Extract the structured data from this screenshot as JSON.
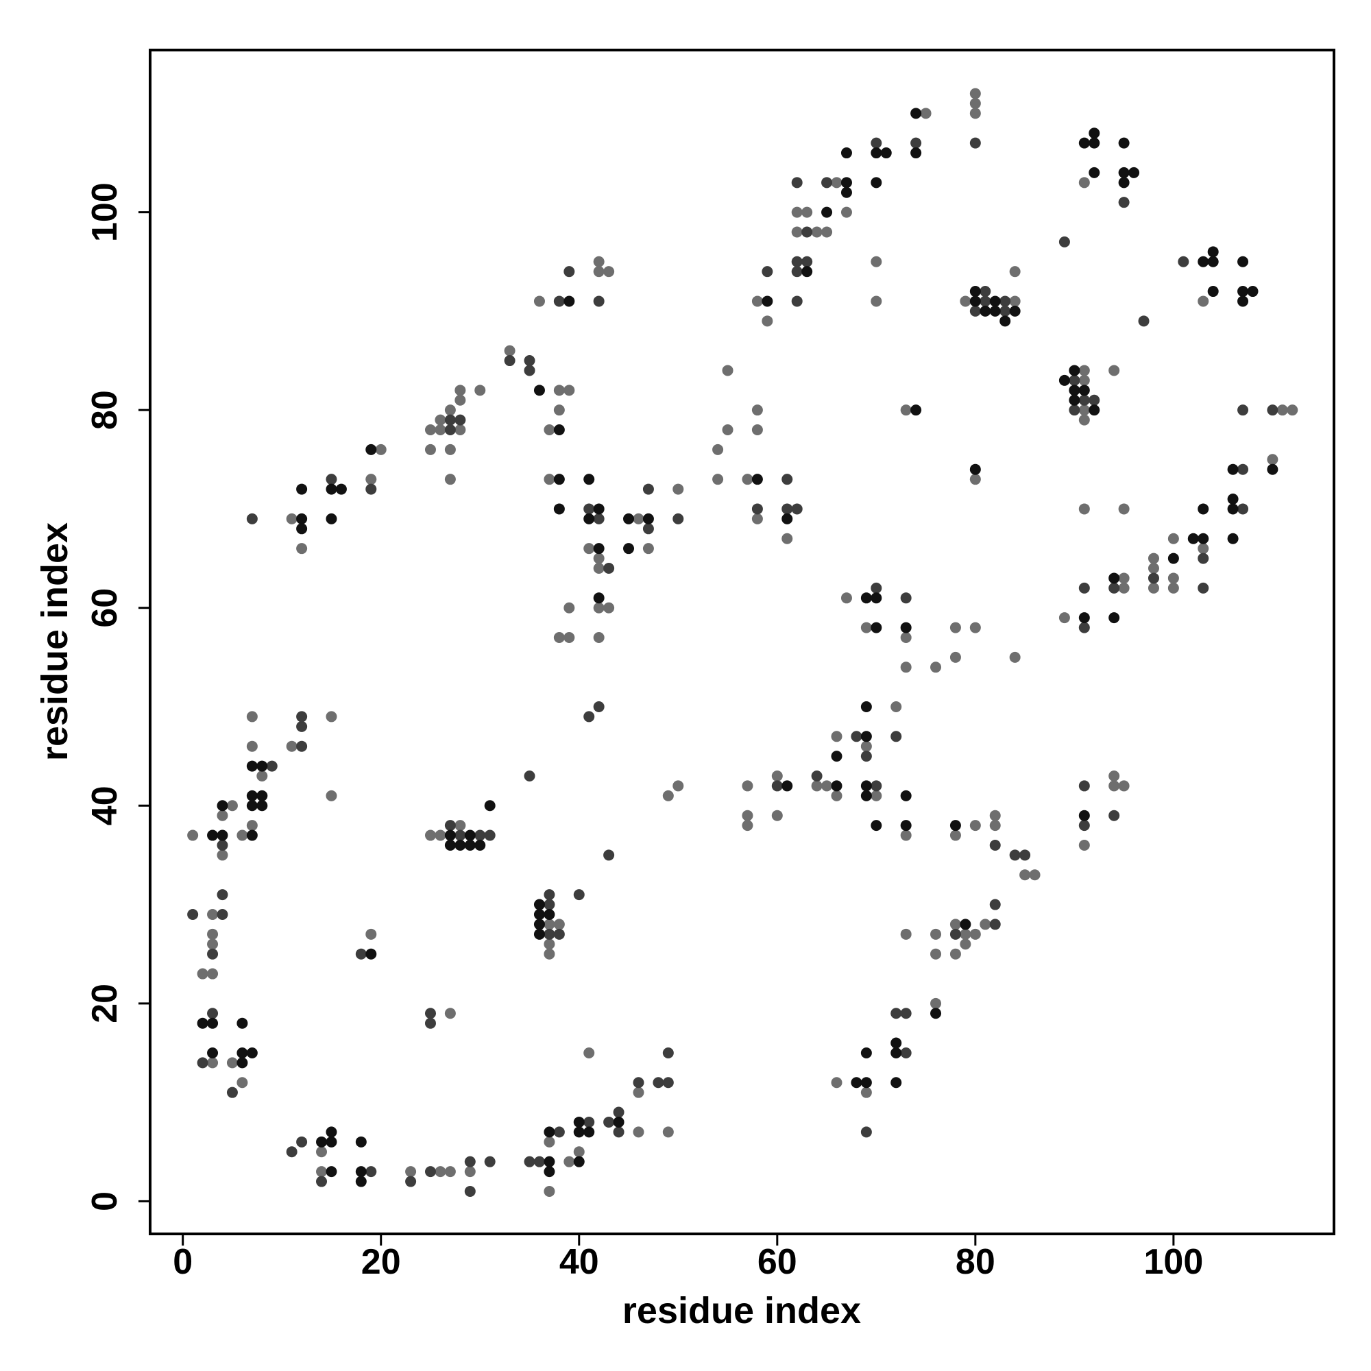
{
  "chart_data": {
    "type": "scatter",
    "xlabel": "residue index",
    "ylabel": "residue index",
    "xlim": [
      -3.3,
      116.2
    ],
    "ylim": [
      -3.3,
      116.4
    ],
    "xticks": [
      0,
      20,
      40,
      60,
      80,
      100
    ],
    "yticks": [
      0,
      20,
      40,
      60,
      80,
      100
    ],
    "series": [
      {
        "color": "#111111",
        "x": [
          14,
          15,
          15,
          15,
          18,
          18,
          18,
          37,
          37,
          37,
          40,
          40,
          40,
          41,
          44,
          2,
          3,
          3,
          3,
          4,
          4,
          6,
          6,
          6,
          7,
          7,
          7,
          7,
          8,
          8,
          7,
          8,
          12,
          12,
          12,
          15,
          16,
          15,
          19,
          19,
          27,
          27,
          28,
          29,
          29,
          30,
          31,
          36,
          36,
          36,
          36,
          37,
          38,
          38,
          39,
          41,
          41,
          42,
          42,
          42,
          45,
          45,
          47,
          58,
          59,
          61,
          61,
          63,
          65,
          67,
          67,
          67,
          70,
          71,
          70,
          74,
          74,
          74,
          66,
          66,
          69,
          69,
          69,
          69,
          69,
          70,
          70,
          70,
          73,
          73,
          73,
          68,
          69,
          69,
          72,
          72,
          72,
          76,
          78,
          79,
          80,
          80,
          81,
          82,
          82,
          83,
          84,
          80,
          89,
          90,
          90,
          90,
          91,
          92,
          91,
          92,
          92,
          92,
          95,
          95,
          95,
          96,
          91,
          94,
          94,
          100,
          102,
          103,
          103,
          103,
          104,
          104,
          104,
          107,
          107,
          107,
          108,
          106,
          106,
          106,
          106,
          110,
          91,
          36,
          38
        ],
        "y": [
          6,
          6,
          7,
          3,
          6,
          3,
          2,
          4,
          3,
          7,
          4,
          7,
          8,
          7,
          8,
          18,
          18,
          15,
          37,
          37,
          40,
          15,
          14,
          18,
          15,
          37,
          40,
          41,
          40,
          41,
          44,
          44,
          69,
          68,
          72,
          72,
          72,
          69,
          76,
          25,
          37,
          36,
          36,
          37,
          36,
          36,
          40,
          30,
          29,
          28,
          27,
          29,
          73,
          78,
          91,
          73,
          69,
          70,
          66,
          61,
          69,
          66,
          69,
          73,
          91,
          42,
          69,
          94,
          100,
          103,
          102,
          106,
          106,
          106,
          103,
          110,
          106,
          80,
          42,
          45,
          47,
          50,
          42,
          41,
          61,
          61,
          58,
          38,
          41,
          38,
          58,
          12,
          12,
          15,
          12,
          15,
          16,
          19,
          38,
          28,
          92,
          91,
          90,
          91,
          90,
          89,
          90,
          74,
          83,
          84,
          82,
          81,
          82,
          80,
          107,
          108,
          107,
          104,
          107,
          104,
          103,
          104,
          59,
          59,
          63,
          65,
          67,
          67,
          70,
          95,
          96,
          95,
          92,
          95,
          92,
          91,
          92,
          74,
          71,
          70,
          67,
          74,
          39,
          82,
          70
        ]
      },
      {
        "color": "#3d3d3d",
        "x": [
          11,
          12,
          14,
          19,
          23,
          25,
          29,
          29,
          31,
          35,
          36,
          38,
          41,
          43,
          44,
          44,
          46,
          48,
          49,
          49,
          1,
          2,
          3,
          3,
          4,
          4,
          4,
          5,
          9,
          7,
          12,
          12,
          12,
          15,
          19,
          18,
          25,
          25,
          27,
          28,
          30,
          31,
          27,
          27,
          28,
          33,
          35,
          35,
          35,
          37,
          37,
          37,
          38,
          40,
          43,
          38,
          39,
          41,
          42,
          43,
          42,
          47,
          47,
          50,
          42,
          41,
          58,
          60,
          59,
          61,
          61,
          62,
          62,
          62,
          62,
          63,
          63,
          62,
          65,
          70,
          74,
          64,
          68,
          69,
          70,
          70,
          72,
          73,
          69,
          73,
          72,
          73,
          78,
          82,
          82,
          82,
          84,
          85,
          80,
          80,
          81,
          81,
          83,
          83,
          89,
          90,
          90,
          91,
          92,
          95,
          97,
          91,
          91,
          94,
          98,
          103,
          103,
          101,
          107,
          107,
          107,
          110,
          91,
          91,
          94
        ],
        "y": [
          5,
          6,
          2,
          3,
          2,
          3,
          4,
          1,
          4,
          4,
          4,
          7,
          8,
          8,
          9,
          7,
          12,
          12,
          12,
          15,
          29,
          14,
          19,
          25,
          36,
          31,
          29,
          11,
          44,
          69,
          46,
          48,
          49,
          73,
          72,
          25,
          19,
          18,
          38,
          37,
          37,
          37,
          78,
          79,
          79,
          85,
          85,
          84,
          43,
          31,
          30,
          27,
          27,
          31,
          35,
          91,
          94,
          70,
          69,
          64,
          91,
          72,
          68,
          69,
          50,
          49,
          70,
          42,
          94,
          73,
          70,
          70,
          91,
          94,
          95,
          95,
          98,
          103,
          103,
          107,
          107,
          43,
          47,
          45,
          42,
          62,
          47,
          61,
          7,
          15,
          19,
          19,
          27,
          28,
          30,
          36,
          35,
          35,
          107,
          90,
          92,
          91,
          91,
          90,
          97,
          83,
          80,
          81,
          81,
          101,
          89,
          62,
          58,
          62,
          63,
          65,
          62,
          95,
          74,
          80,
          70,
          80,
          42,
          38,
          39
        ]
      },
      {
        "color": "#6e6e6e",
        "x": [
          14,
          14,
          23,
          26,
          27,
          29,
          37,
          37,
          39,
          40,
          46,
          46,
          49,
          41,
          1,
          2,
          3,
          3,
          3,
          3,
          3,
          4,
          4,
          5,
          5,
          6,
          6,
          7,
          8,
          7,
          7,
          11,
          15,
          15,
          11,
          12,
          19,
          20,
          19,
          27,
          25,
          26,
          28,
          25,
          25,
          26,
          26,
          27,
          27,
          27,
          28,
          28,
          28,
          30,
          33,
          37,
          37,
          37,
          38,
          36,
          38,
          39,
          38,
          37,
          37,
          38,
          39,
          39,
          41,
          42,
          42,
          42,
          43,
          42,
          42,
          42,
          43,
          46,
          47,
          50,
          49,
          50,
          54,
          54,
          55,
          55,
          57,
          58,
          58,
          58,
          57,
          57,
          57,
          60,
          60,
          58,
          59,
          61,
          62,
          64,
          65,
          62,
          63,
          66,
          67,
          70,
          70,
          75,
          73,
          64,
          65,
          66,
          66,
          67,
          69,
          70,
          69,
          72,
          73,
          73,
          73,
          76,
          78,
          78,
          66,
          69,
          73,
          76,
          76,
          76,
          78,
          78,
          79,
          78,
          79,
          80,
          81,
          80,
          82,
          82,
          85,
          86,
          80,
          80,
          80,
          79,
          84,
          84,
          80,
          80,
          84,
          91,
          91,
          91,
          91,
          94,
          91,
          91,
          95,
          89,
          95,
          95,
          98,
          98,
          98,
          100,
          100,
          100,
          103,
          103,
          110,
          111,
          112,
          91,
          94,
          94,
          95
        ],
        "y": [
          3,
          5,
          3,
          3,
          3,
          3,
          1,
          6,
          4,
          5,
          7,
          11,
          7,
          15,
          37,
          23,
          23,
          14,
          26,
          27,
          29,
          35,
          39,
          40,
          14,
          12,
          37,
          38,
          43,
          46,
          49,
          46,
          49,
          41,
          69,
          66,
          73,
          76,
          27,
          19,
          37,
          37,
          38,
          76,
          78,
          78,
          79,
          80,
          76,
          73,
          78,
          81,
          82,
          82,
          86,
          28,
          26,
          25,
          28,
          91,
          82,
          82,
          80,
          78,
          73,
          57,
          57,
          60,
          66,
          65,
          64,
          60,
          60,
          57,
          95,
          94,
          94,
          69,
          66,
          72,
          41,
          42,
          76,
          73,
          78,
          84,
          73,
          78,
          80,
          69,
          42,
          39,
          38,
          43,
          39,
          91,
          89,
          67,
          98,
          98,
          98,
          100,
          100,
          103,
          100,
          95,
          91,
          110,
          80,
          42,
          42,
          41,
          47,
          61,
          46,
          41,
          58,
          50,
          37,
          57,
          54,
          54,
          55,
          58,
          12,
          11,
          27,
          20,
          27,
          25,
          37,
          28,
          27,
          25,
          26,
          27,
          28,
          38,
          38,
          39,
          33,
          33,
          112,
          111,
          110,
          91,
          91,
          94,
          73,
          58,
          55,
          84,
          83,
          80,
          79,
          84,
          103,
          70,
          70,
          59,
          62,
          63,
          65,
          64,
          62,
          67,
          63,
          62,
          66,
          91,
          75,
          80,
          80,
          36,
          43,
          42,
          42
        ]
      }
    ]
  }
}
